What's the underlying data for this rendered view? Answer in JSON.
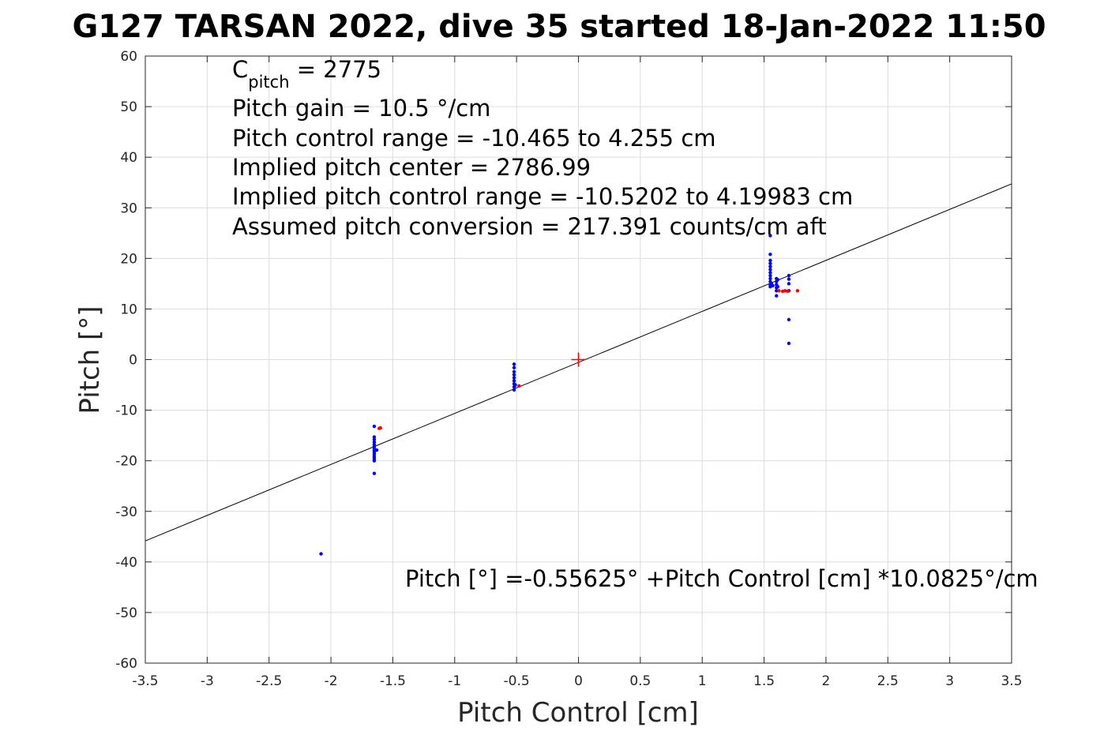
{
  "chart_data": {
    "type": "scatter",
    "title": "G127 TARSAN 2022, dive 35 started 18-Jan-2022 11:50",
    "xlabel": "Pitch Control [cm]",
    "ylabel": "Pitch [°]",
    "xlim": [
      -3.5,
      3.5
    ],
    "ylim": [
      -60,
      60
    ],
    "xticks": [
      -3.5,
      -3,
      -2.5,
      -2,
      -1.5,
      -1,
      -0.5,
      0,
      0.5,
      1,
      1.5,
      2,
      2.5,
      3,
      3.5
    ],
    "yticks": [
      -60,
      -50,
      -40,
      -30,
      -20,
      -10,
      0,
      10,
      20,
      30,
      40,
      50,
      60
    ],
    "xtick_labels": [
      "-3.5",
      "-3",
      "-2.5",
      "-2",
      "-1.5",
      "-1",
      "-0.5",
      "0",
      "0.5",
      "1",
      "1.5",
      "2",
      "2.5",
      "3",
      "3.5"
    ],
    "ytick_labels": [
      "-60",
      "-50",
      "-40",
      "-30",
      "-20",
      "-10",
      "0",
      "10",
      "20",
      "30",
      "40",
      "50",
      "60"
    ],
    "grid": true,
    "series": [
      {
        "color": "#0000ff",
        "marker": "dot",
        "points": [
          [
            -2.08,
            -38.4
          ],
          [
            -1.65,
            -13.2
          ],
          [
            -1.65,
            -15.3
          ],
          [
            -1.65,
            -15.8
          ],
          [
            -1.65,
            -16.3
          ],
          [
            -1.65,
            -16.8
          ],
          [
            -1.65,
            -17.2
          ],
          [
            -1.65,
            -17.6
          ],
          [
            -1.65,
            -18.0
          ],
          [
            -1.65,
            -18.4
          ],
          [
            -1.65,
            -18.8
          ],
          [
            -1.65,
            -19.2
          ],
          [
            -1.65,
            -19.6
          ],
          [
            -1.65,
            -20.0
          ],
          [
            -1.65,
            -22.5
          ],
          [
            -1.63,
            -17.9
          ],
          [
            -0.52,
            -0.9
          ],
          [
            -0.52,
            -1.6
          ],
          [
            -0.52,
            -2.4
          ],
          [
            -0.52,
            -3.0
          ],
          [
            -0.52,
            -3.6
          ],
          [
            -0.52,
            -4.2
          ],
          [
            -0.52,
            -4.8
          ],
          [
            -0.52,
            -5.4
          ],
          [
            -0.52,
            -6.0
          ],
          [
            -0.51,
            -5.0
          ],
          [
            1.55,
            24.5
          ],
          [
            1.55,
            20.8
          ],
          [
            1.55,
            19.6
          ],
          [
            1.55,
            19.0
          ],
          [
            1.55,
            18.4
          ],
          [
            1.55,
            17.8
          ],
          [
            1.55,
            17.2
          ],
          [
            1.55,
            16.6
          ],
          [
            1.55,
            16.0
          ],
          [
            1.55,
            15.4
          ],
          [
            1.55,
            14.8
          ],
          [
            1.55,
            14.4
          ],
          [
            1.56,
            15.0
          ],
          [
            1.57,
            14.6
          ],
          [
            1.6,
            16.0
          ],
          [
            1.6,
            15.4
          ],
          [
            1.6,
            14.8
          ],
          [
            1.6,
            14.2
          ],
          [
            1.6,
            13.6
          ],
          [
            1.6,
            12.6
          ],
          [
            1.61,
            15.8
          ],
          [
            1.61,
            14.4
          ],
          [
            1.7,
            16.6
          ],
          [
            1.7,
            15.9
          ],
          [
            1.7,
            15.0
          ],
          [
            1.7,
            13.6
          ],
          [
            1.7,
            7.9
          ],
          [
            1.7,
            3.2
          ]
        ]
      },
      {
        "color": "#ff0000",
        "marker": "dot",
        "points": [
          [
            -1.61,
            -13.6
          ],
          [
            -1.6,
            -13.5
          ],
          [
            -0.48,
            -5.2
          ],
          [
            1.62,
            13.6
          ],
          [
            1.65,
            13.5
          ],
          [
            1.67,
            13.6
          ],
          [
            1.69,
            13.5
          ],
          [
            1.77,
            13.6
          ]
        ]
      }
    ],
    "center_marker": {
      "x": 0,
      "y": 0,
      "symbol": "+",
      "color": "#ff0000"
    },
    "fit_line": {
      "intercept": -0.55625,
      "slope": 10.0825,
      "color": "#000000"
    },
    "annotations": {
      "cpitch_prefix": "C",
      "cpitch_sub": "pitch",
      "cpitch_value": " = 2775",
      "line2": "Pitch gain = 10.5 °/cm",
      "line3": "Pitch control range = -10.465 to 4.255 cm",
      "line4": "Implied pitch center = 2786.99",
      "line5": "Implied pitch control range = -10.5202 to 4.19983 cm",
      "line6": "Assumed pitch conversion = 217.391 counts/cm aft",
      "equation": "Pitch [°] =-0.55625° +Pitch Control [cm] *10.0825°/cm"
    }
  }
}
